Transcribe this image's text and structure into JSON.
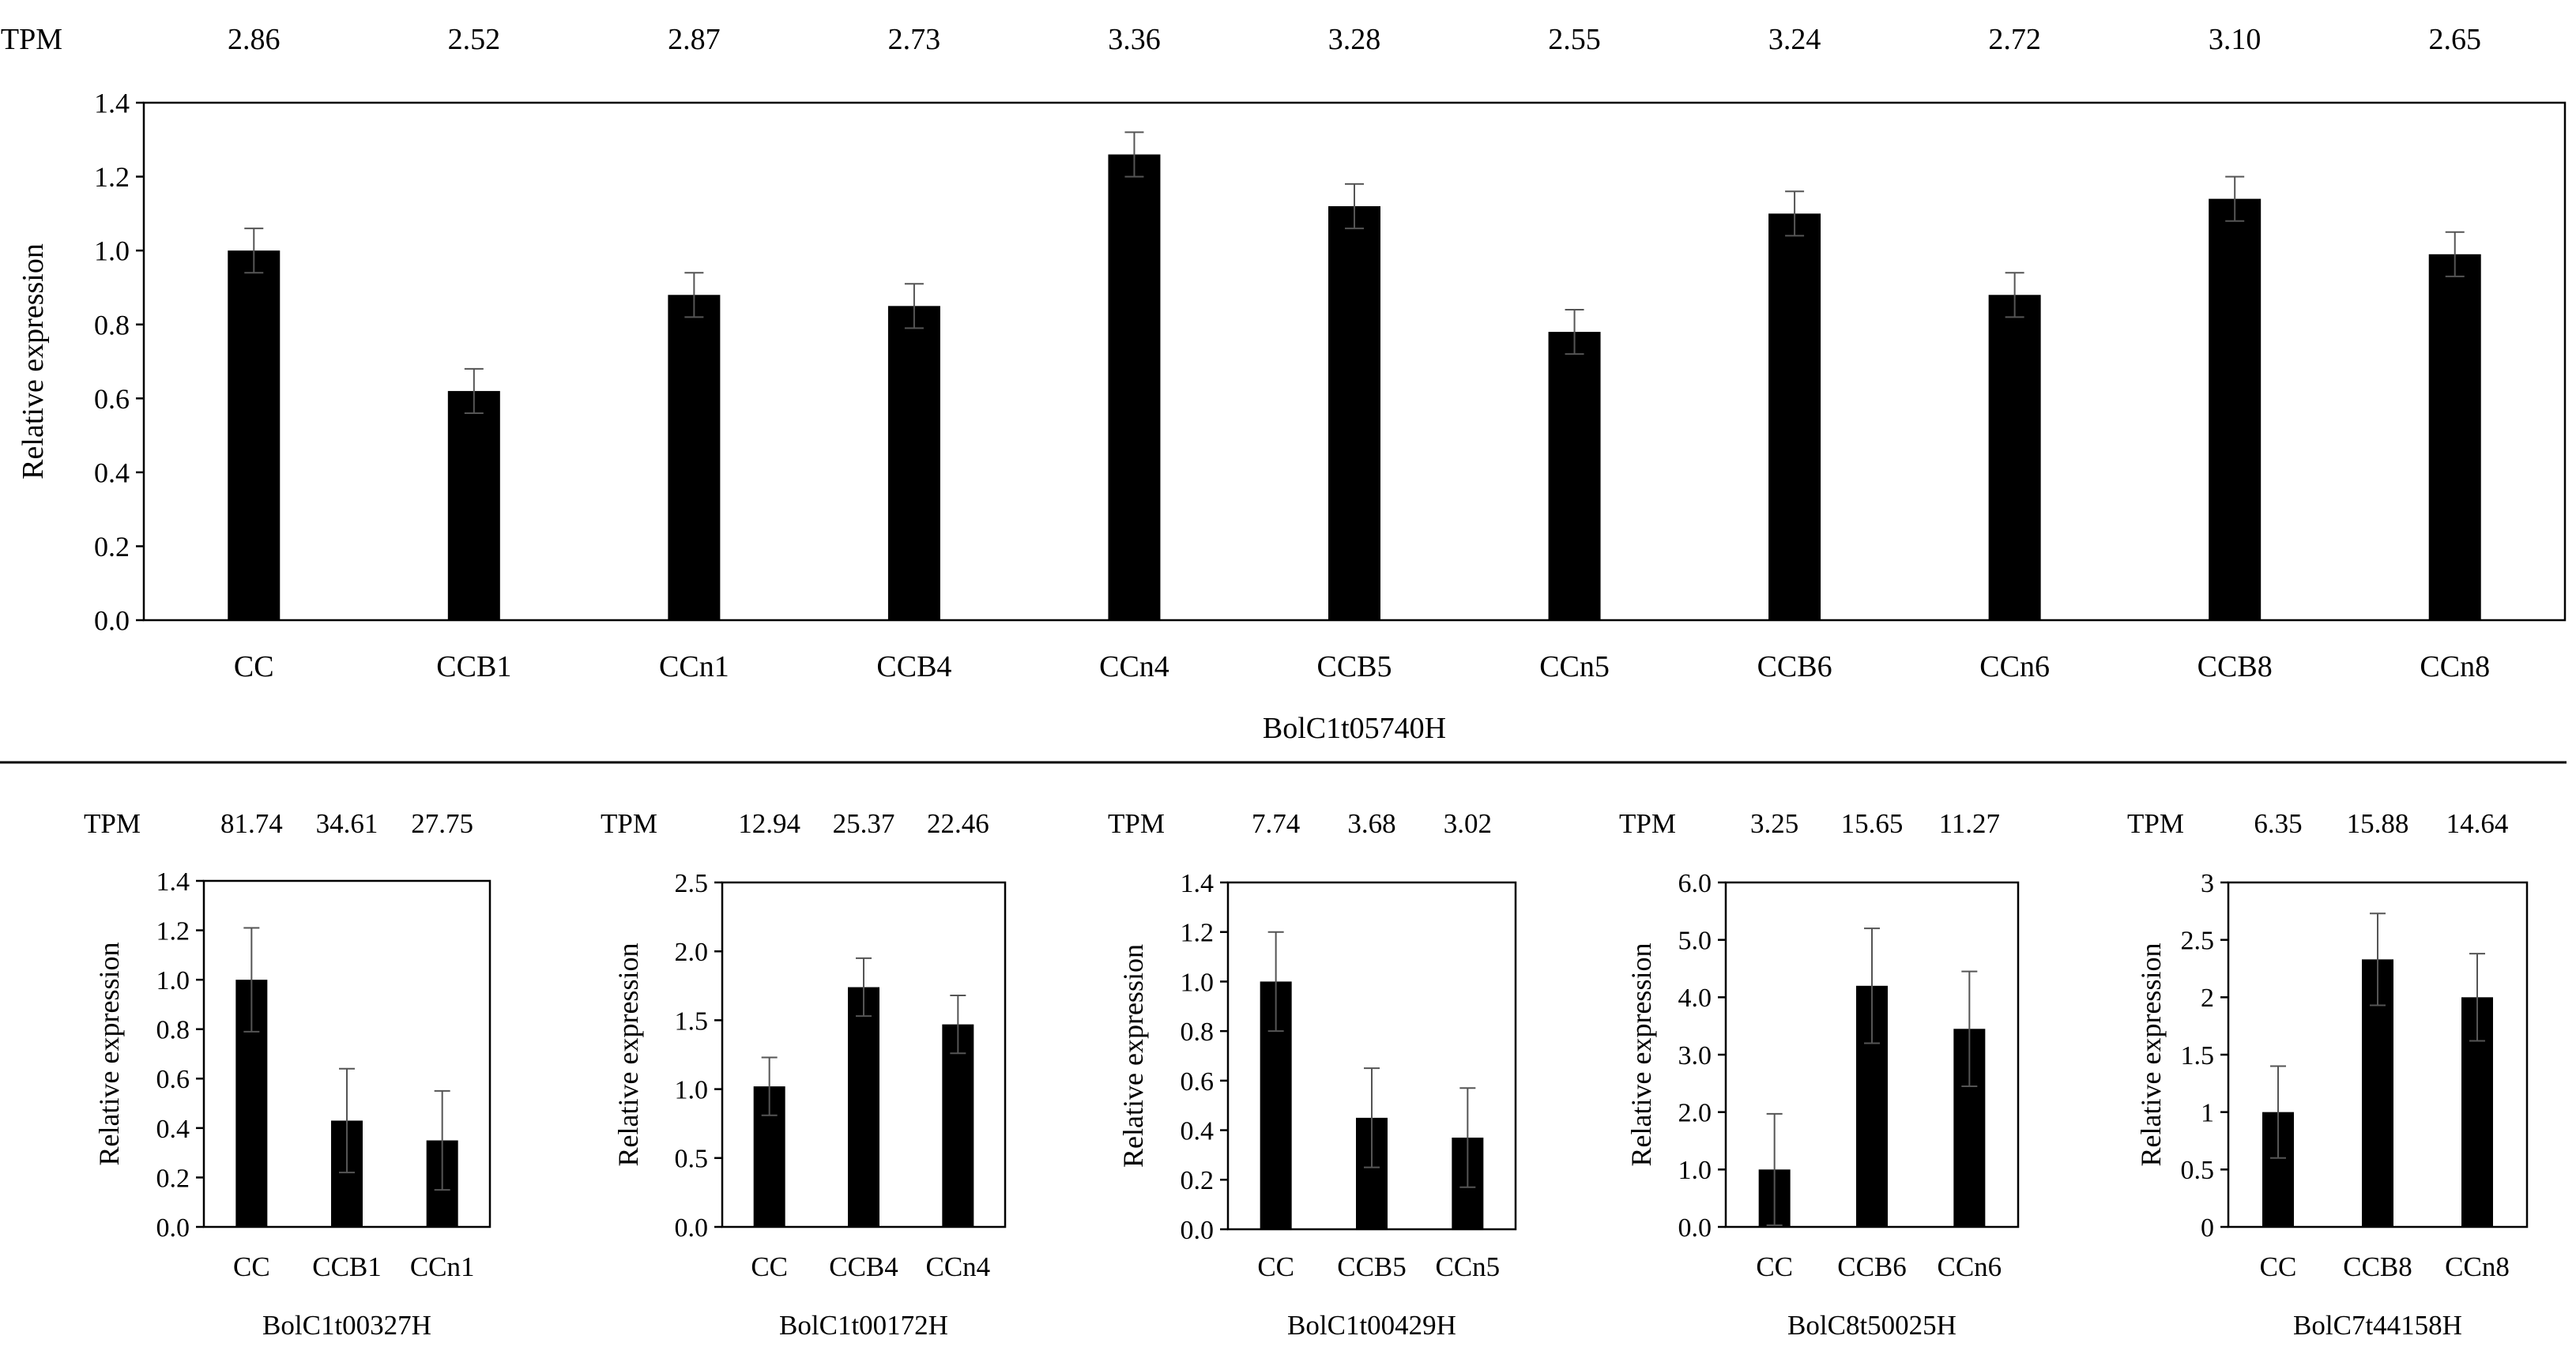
{
  "chart_data": [
    {
      "type": "bar",
      "gene": "BolC1t05740H",
      "tpm_label": "TPM",
      "categories": [
        "CC",
        "CCB1",
        "CCn1",
        "CCB4",
        "CCn4",
        "CCB5",
        "CCn5",
        "CCB6",
        "CCn6",
        "CCB8",
        "CCn8"
      ],
      "tpm": [
        "2.86",
        "2.52",
        "2.87",
        "2.73",
        "3.36",
        "3.28",
        "2.55",
        "3.24",
        "2.72",
        "3.10",
        "2.65"
      ],
      "values": [
        1.0,
        0.62,
        0.88,
        0.85,
        1.26,
        1.12,
        0.78,
        1.1,
        0.88,
        1.14,
        0.99
      ],
      "errors": [
        0.06,
        0.06,
        0.06,
        0.06,
        0.06,
        0.06,
        0.06,
        0.06,
        0.06,
        0.06,
        0.06
      ],
      "ylabel": "Relative expression",
      "ylim": [
        0,
        1.4
      ],
      "yticks": [
        "0.0",
        "0.2",
        "0.4",
        "0.6",
        "0.8",
        "1.0",
        "1.2",
        "1.4"
      ]
    },
    {
      "type": "bar",
      "gene": "BolC1t00327H",
      "tpm_label": "TPM",
      "categories": [
        "CC",
        "CCB1",
        "CCn1"
      ],
      "tpm": [
        "81.74",
        "34.61",
        "27.75"
      ],
      "values": [
        1.0,
        0.43,
        0.35
      ],
      "errors": [
        0.21,
        0.21,
        0.2
      ],
      "ylabel": "Relative expression",
      "ylim": [
        0,
        1.4
      ],
      "yticks": [
        "0.0",
        "0.2",
        "0.4",
        "0.6",
        "0.8",
        "1.0",
        "1.2",
        "1.4"
      ]
    },
    {
      "type": "bar",
      "gene": "BolC1t00172H",
      "tpm_label": "TPM",
      "categories": [
        "CC",
        "CCB4",
        "CCn4"
      ],
      "tpm": [
        "12.94",
        "25.37",
        "22.46"
      ],
      "values": [
        1.02,
        1.74,
        1.47
      ],
      "errors": [
        0.21,
        0.21,
        0.21
      ],
      "ylabel": "Relative expression",
      "ylim": [
        0,
        2.5
      ],
      "yticks": [
        "0.0",
        "0.5",
        "1.0",
        "1.5",
        "2.0",
        "2.5"
      ]
    },
    {
      "type": "bar",
      "gene": "BolC1t00429H",
      "tpm_label": "TPM",
      "categories": [
        "CC",
        "CCB5",
        "CCn5"
      ],
      "tpm": [
        "7.74",
        "3.68",
        "3.02"
      ],
      "values": [
        1.0,
        0.45,
        0.37
      ],
      "errors": [
        0.2,
        0.2,
        0.2
      ],
      "ylabel": "Relative expression",
      "ylim": [
        0,
        1.4
      ],
      "yticks": [
        "0.0",
        "0.2",
        "0.4",
        "0.6",
        "0.8",
        "1.0",
        "1.2",
        "1.4"
      ]
    },
    {
      "type": "bar",
      "gene": "BolC8t50025H",
      "tpm_label": "TPM",
      "categories": [
        "CC",
        "CCB6",
        "CCn6"
      ],
      "tpm": [
        "3.25",
        "15.65",
        "11.27"
      ],
      "values": [
        1.0,
        4.2,
        3.45
      ],
      "errors": [
        0.97,
        1.0,
        1.0
      ],
      "ylabel": "Relative expression",
      "ylim": [
        0,
        6
      ],
      "yticks": [
        "0.0",
        "1.0",
        "2.0",
        "3.0",
        "4.0",
        "5.0",
        "6.0"
      ]
    },
    {
      "type": "bar",
      "gene": "BolC7t44158H",
      "tpm_label": "TPM",
      "categories": [
        "CC",
        "CCB8",
        "CCn8"
      ],
      "tpm": [
        "6.35",
        "15.88",
        "14.64"
      ],
      "values": [
        1.0,
        2.33,
        2.0
      ],
      "errors": [
        0.4,
        0.4,
        0.38
      ],
      "ylabel": "Relative expression",
      "ylim": [
        0,
        3
      ],
      "yticks": [
        "0",
        "0.5",
        "1",
        "1.5",
        "2",
        "2.5",
        "3"
      ]
    }
  ]
}
